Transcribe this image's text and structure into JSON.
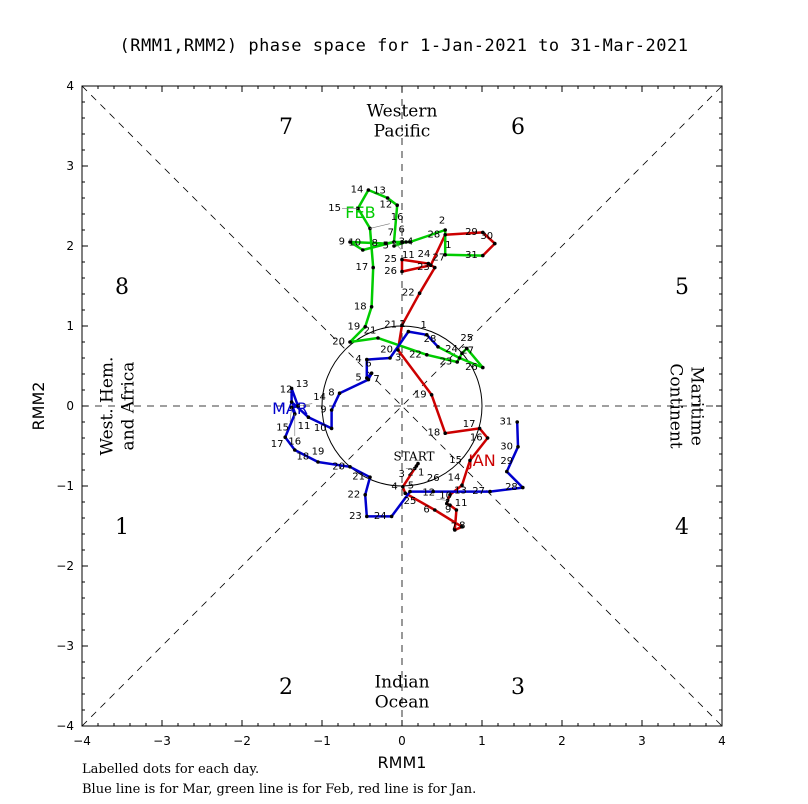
{
  "chart_data": {
    "type": "line",
    "title": "(RMM1,RMM2) phase space for  1-Jan-2021 to 31-Mar-2021",
    "xlabel": "RMM1",
    "ylabel": "RMM2",
    "xlim": [
      -4,
      4
    ],
    "ylim": [
      -4,
      4
    ],
    "xticks": [
      "-4",
      "-3",
      "-2",
      "-1",
      "0",
      "1",
      "2",
      "3",
      "4"
    ],
    "yticks": [
      "-4",
      "-3",
      "-2",
      "-1",
      "0",
      "1",
      "2",
      "3",
      "4"
    ],
    "phase_numbers": [
      "1",
      "2",
      "3",
      "4",
      "5",
      "6",
      "7",
      "8"
    ],
    "regions": {
      "top": [
        "Western",
        "Pacific"
      ],
      "bottom": [
        "Indian",
        "Ocean"
      ],
      "left": [
        "West. Hem.",
        "and Africa"
      ],
      "right": [
        "Maritime",
        "Continent"
      ]
    },
    "start_label": "START",
    "series": [
      {
        "name": "JAN",
        "color": "#cc0000",
        "days": [
          [
            0.2,
            -0.72
          ],
          [
            0.18,
            -0.75
          ],
          [
            0.16,
            -0.78
          ],
          [
            0.01,
            -1.01
          ],
          [
            0.04,
            -1.09
          ],
          [
            0.41,
            -1.3
          ],
          [
            0.75,
            -1.51
          ],
          [
            0.66,
            -1.55
          ],
          [
            0.68,
            -1.3
          ],
          [
            0.6,
            -1.24
          ],
          [
            0.56,
            -1.22
          ],
          [
            0.57,
            -1.18
          ],
          [
            0.6,
            -1.11
          ],
          [
            0.75,
            -0.99
          ],
          [
            0.85,
            -0.68
          ],
          [
            1.07,
            -0.4
          ],
          [
            0.97,
            -0.28
          ],
          [
            0.54,
            -0.34
          ],
          [
            0.37,
            0.14
          ],
          [
            -0.05,
            0.7
          ],
          [
            0.0,
            1.01
          ],
          [
            0.22,
            1.41
          ],
          [
            0.41,
            1.73
          ],
          [
            0.33,
            1.78
          ],
          [
            0.0,
            1.83
          ],
          [
            0.0,
            1.68
          ],
          [
            0.36,
            1.76
          ],
          [
            0.54,
            2.14
          ],
          [
            1.01,
            2.17
          ],
          [
            1.16,
            2.03
          ],
          [
            1.01,
            1.88
          ]
        ]
      },
      {
        "name": "FEB",
        "color": "#00cc00",
        "days": [
          [
            0.54,
            1.89
          ],
          [
            0.54,
            2.2
          ],
          [
            0.1,
            2.05
          ],
          [
            0.0,
            2.05
          ],
          [
            -0.1,
            2.0
          ],
          [
            0.05,
            2.05
          ],
          [
            -0.1,
            2.05
          ],
          [
            -0.2,
            2.03
          ],
          [
            -0.65,
            2.05
          ],
          [
            -0.49,
            1.95
          ],
          [
            -0.1,
            2.05
          ],
          [
            -0.06,
            2.51
          ],
          [
            -0.18,
            2.6
          ],
          [
            -0.42,
            2.7
          ],
          [
            -0.55,
            2.47
          ],
          [
            -0.4,
            2.22
          ],
          [
            -0.36,
            1.73
          ],
          [
            -0.38,
            1.24
          ],
          [
            -0.46,
            0.99
          ],
          [
            -0.65,
            0.8
          ],
          [
            -0.3,
            0.85
          ],
          [
            0.31,
            0.64
          ],
          [
            0.69,
            0.55
          ],
          [
            0.75,
            0.66
          ],
          [
            0.81,
            0.72
          ],
          [
            1.01,
            0.48
          ],
          [
            0.72,
            0.6
          ],
          [
            0.45,
            0.74
          ]
        ]
      },
      {
        "name": "MAR",
        "color": "#0000cc",
        "days": [
          [
            0.31,
            0.89
          ],
          [
            0.08,
            0.93
          ],
          [
            -0.15,
            0.6
          ],
          [
            -0.44,
            0.58
          ],
          [
            -0.44,
            0.35
          ],
          [
            -0.38,
            0.41
          ],
          [
            -0.42,
            0.33
          ],
          [
            -0.78,
            0.16
          ],
          [
            -0.88,
            -0.05
          ],
          [
            -0.88,
            -0.28
          ],
          [
            -1.17,
            -0.14
          ],
          [
            -1.38,
            0.05
          ],
          [
            -1.38,
            0.22
          ],
          [
            -1.3,
            0.0
          ],
          [
            -1.38,
            -0.02
          ],
          [
            -1.34,
            -0.1
          ],
          [
            -1.46,
            -0.39
          ],
          [
            -1.34,
            -0.55
          ],
          [
            -1.05,
            -0.7
          ],
          [
            -0.65,
            -0.76
          ],
          [
            -0.4,
            -0.89
          ],
          [
            -0.46,
            -1.11
          ],
          [
            -0.44,
            -1.38
          ],
          [
            -0.13,
            -1.38
          ],
          [
            0.1,
            -1.07
          ],
          [
            0.39,
            -1.07
          ],
          [
            1.1,
            -1.07
          ],
          [
            1.51,
            -1.02
          ],
          [
            1.31,
            -0.82
          ],
          [
            1.45,
            -0.51
          ],
          [
            1.44,
            -0.2
          ]
        ]
      }
    ],
    "month_label_positions": {
      "JAN": [
        1.0,
        -0.75
      ],
      "FEB": [
        -0.52,
        2.35
      ],
      "MAR": [
        -1.4,
        -0.1
      ]
    }
  },
  "footer": {
    "line1": "Labelled dots for each day.",
    "line2": "Blue line is for Mar, green line is for Feb, red line is for Jan."
  }
}
